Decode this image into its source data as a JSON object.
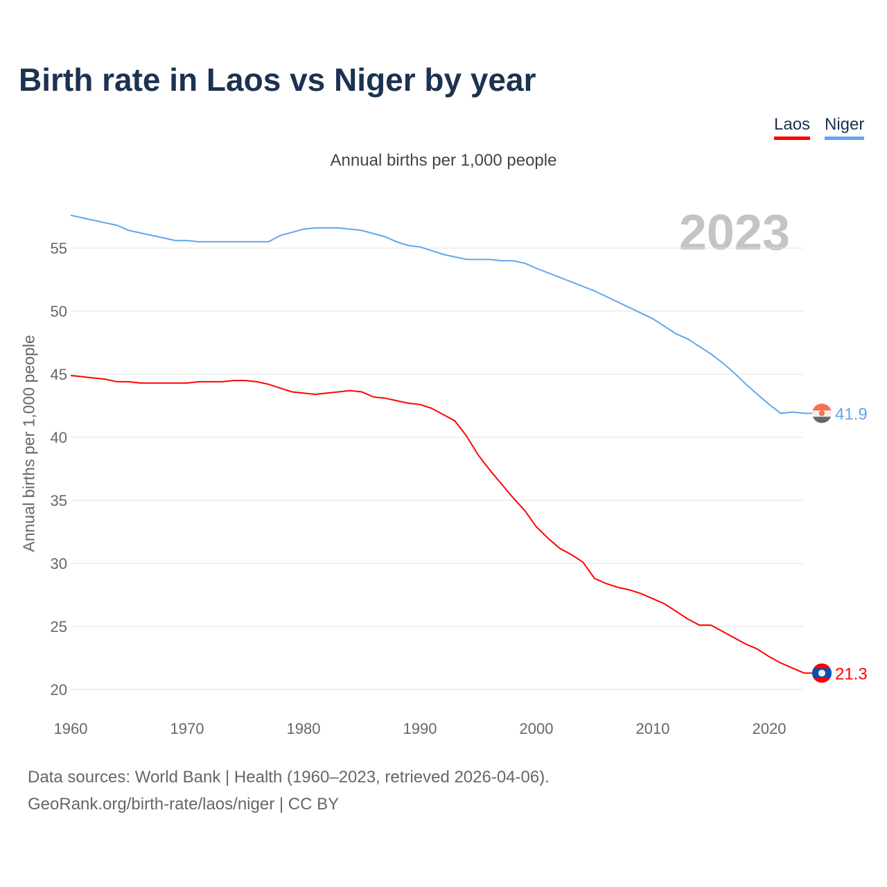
{
  "title": "Birth rate in Laos vs Niger by year",
  "legend": [
    {
      "label": "Laos",
      "color": "#ff0000"
    },
    {
      "label": "Niger",
      "color": "#62a6eb"
    }
  ],
  "source_line1": "Data sources: World Bank | Health (1960–2023, retrieved 2026-04-06).",
  "source_line2": "GeoRank.org/birth-rate/laos/niger | CC BY",
  "chart_data": {
    "type": "line",
    "title": "Birth rate in Laos vs Niger by year",
    "subtitle": "Annual births per 1,000 people",
    "ylabel": "Annual births per 1,000 people",
    "xlabel": "",
    "year_watermark": "2023",
    "xlim": [
      1960,
      2023
    ],
    "ylim": [
      20,
      57.7
    ],
    "xticks": [
      1960,
      1970,
      1980,
      1990,
      2000,
      2010,
      2020
    ],
    "yticks": [
      20,
      25,
      30,
      35,
      40,
      45,
      50,
      55
    ],
    "grid": true,
    "legend_position": "top-right",
    "series": [
      {
        "name": "Laos",
        "color": "#ff0000",
        "end_label": "21.3",
        "flag": "laos-flag",
        "x": [
          1960,
          1961,
          1962,
          1963,
          1964,
          1965,
          1966,
          1970,
          1971,
          1973,
          1974,
          1975,
          1976,
          1977,
          1978,
          1979,
          1980,
          1981,
          1982,
          1983,
          1984,
          1985,
          1986,
          1987,
          1988,
          1989,
          1990,
          1991,
          1992,
          1993,
          1994,
          1995,
          1996,
          1997,
          1998,
          1999,
          2000,
          2001,
          2002,
          2003,
          2004,
          2005,
          2006,
          2007,
          2008,
          2009,
          2010,
          2011,
          2012,
          2013,
          2014,
          2015,
          2016,
          2017,
          2018,
          2019,
          2020,
          2021,
          2022,
          2023
        ],
        "values": [
          44.9,
          44.8,
          44.7,
          44.6,
          44.4,
          44.4,
          44.3,
          44.3,
          44.4,
          44.4,
          44.5,
          44.5,
          44.4,
          44.2,
          43.9,
          43.6,
          43.5,
          43.4,
          43.5,
          43.6,
          43.7,
          43.6,
          43.2,
          43.1,
          42.9,
          42.7,
          42.6,
          42.3,
          41.8,
          41.3,
          40.1,
          38.6,
          37.4,
          36.3,
          35.2,
          34.2,
          32.9,
          32.0,
          31.2,
          30.7,
          30.1,
          28.8,
          28.4,
          28.1,
          27.9,
          27.6,
          27.2,
          26.8,
          26.2,
          25.6,
          25.1,
          25.1,
          24.6,
          24.1,
          23.6,
          23.2,
          22.6,
          22.1,
          21.7,
          21.3
        ]
      },
      {
        "name": "Niger",
        "color": "#62a6eb",
        "end_label": "41.9",
        "flag": "niger-flag",
        "x": [
          1960,
          1964,
          1965,
          1969,
          1970,
          1971,
          1977,
          1978,
          1980,
          1981,
          1983,
          1985,
          1987,
          1988,
          1989,
          1990,
          1992,
          1994,
          1996,
          1997,
          1998,
          1999,
          2000,
          2005,
          2010,
          2012,
          2013,
          2015,
          2016,
          2017,
          2018,
          2019,
          2020,
          2021,
          2022,
          2023
        ],
        "values": [
          57.6,
          56.8,
          56.4,
          55.6,
          55.6,
          55.5,
          55.5,
          56.0,
          56.5,
          56.6,
          56.6,
          56.4,
          55.9,
          55.5,
          55.2,
          55.1,
          54.5,
          54.1,
          54.1,
          54.0,
          54.0,
          53.8,
          53.4,
          51.6,
          49.4,
          48.2,
          47.8,
          46.6,
          45.9,
          45.1,
          44.2,
          43.4,
          42.6,
          41.9,
          42.0,
          41.9
        ]
      }
    ]
  }
}
